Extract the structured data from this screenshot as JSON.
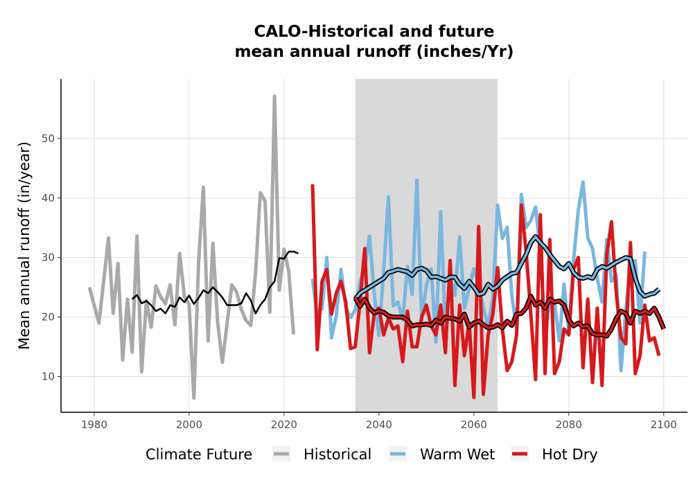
{
  "chart_data": {
    "type": "line",
    "title_lines": [
      "CALO-Historical and future",
      "mean annual runoff (inches/Yr)"
    ],
    "ylabel": "Mean annual runoff (in/year)",
    "xlabel": "",
    "xlim": [
      1973,
      2105
    ],
    "ylim": [
      4,
      60
    ],
    "x_ticks": [
      1980,
      2000,
      2020,
      2040,
      2060,
      2080,
      2100
    ],
    "y_ticks": [
      10,
      20,
      30,
      40,
      50
    ],
    "grid": true,
    "shaded_period": [
      2035,
      2065
    ],
    "legend": {
      "title": "Climate Future",
      "position": "bottom",
      "entries": [
        "Historical",
        "Warm Wet",
        "Hot Dry"
      ]
    },
    "colors": {
      "Historical": "#a9a9a9",
      "Warm Wet": "#79b7e0",
      "Hot Dry": "#d7191c",
      "rolling_mean": "#000000",
      "shade": "#d9d9d9"
    },
    "series": [
      {
        "name": "Historical",
        "x_start": 1979,
        "values": [
          25,
          22,
          19,
          26,
          33.3,
          20.6,
          29,
          12.8,
          23,
          14.1,
          33.6,
          10.8,
          22.8,
          18.3,
          25.2,
          23.4,
          22.2,
          25.4,
          18.7,
          30.7,
          23.5,
          22.1,
          6.4,
          29.3,
          41.8,
          16,
          32.4,
          19.2,
          12.4,
          18.9,
          25.4,
          24.2,
          21.3,
          19.4,
          18.6,
          27.5,
          40.9,
          39.5,
          20.8,
          57.1,
          24.5,
          31.4,
          27.6,
          17.1
        ]
      },
      {
        "name": "Warm Wet",
        "x_start": 2026,
        "values": [
          26.4,
          20.1,
          21.5,
          30,
          16.5,
          20.2,
          28,
          21.6,
          19.9,
          21.2,
          25.9,
          28.2,
          33.6,
          24,
          16.9,
          27.8,
          40.2,
          21.9,
          22.5,
          19.5,
          28.5,
          23.8,
          43,
          19.5,
          25.4,
          28.1,
          15.8,
          37.7,
          17.9,
          26.5,
          23.7,
          33.5,
          21.5,
          24.9,
          28.1,
          25.5,
          21.6,
          18.3,
          23.3,
          38.8,
          33.2,
          35.1,
          23.5,
          18.1,
          40.6,
          35.1,
          36.2,
          38.5,
          31.1,
          17.5,
          22.5,
          22.3,
          16,
          25.5,
          17.5,
          29.5,
          38,
          42.7,
          33.3,
          31.5,
          26.5,
          22.5,
          33,
          26,
          27,
          11,
          21,
          29,
          29.5,
          19,
          31
        ]
      },
      {
        "name": "Hot Dry",
        "x_start": 2026,
        "values": [
          42.3,
          14.5,
          26,
          28,
          20.5,
          24,
          26,
          22.5,
          14.7,
          15,
          22.5,
          31.5,
          14,
          20.6,
          21.5,
          17,
          19.8,
          18,
          18.5,
          12.5,
          21,
          15,
          15,
          20,
          22,
          18.5,
          17,
          22,
          14,
          29.5,
          8.5,
          22,
          13.5,
          19,
          6.5,
          35.2,
          7,
          17,
          20.5,
          28.3,
          18,
          11,
          12.5,
          17,
          38.8,
          31,
          20.5,
          9.5,
          37.2,
          10.5,
          33,
          10.5,
          12.5,
          18,
          17,
          28,
          30,
          11.5,
          23,
          9,
          21.5,
          8.5,
          30.5,
          36,
          24,
          16.5,
          15.5,
          32.5,
          10.5,
          13.5,
          22,
          16,
          16.5,
          13.5
        ]
      },
      {
        "name": "Historical rolling mean",
        "x_start": 1988,
        "values": [
          23,
          23.7,
          22.3,
          22.7,
          22,
          21,
          21.4,
          20.6,
          22,
          21.7,
          23.3,
          22.5,
          23.6,
          22.2,
          23.2,
          24.5,
          24,
          25,
          24.2,
          23.3,
          22,
          22,
          22,
          22.3,
          24,
          22.8,
          20.6,
          22,
          23,
          25,
          26,
          29.9,
          29.8,
          31,
          31,
          30.7
        ]
      },
      {
        "name": "Warm Wet rolling mean",
        "x_start": 2035,
        "values": [
          23,
          24,
          24.5,
          25,
          25.5,
          26,
          26.5,
          27.5,
          27.7,
          28,
          27.8,
          27.6,
          27,
          28,
          28.2,
          27.8,
          26.7,
          26.8,
          26.5,
          26.2,
          26.7,
          26.7,
          25.5,
          24.8,
          26,
          25,
          23.8,
          24,
          25.5,
          24.7,
          25.2,
          26.2,
          26.8,
          27.3,
          27.5,
          29,
          30.5,
          32.5,
          33.5,
          32.5,
          31.7,
          30.5,
          29.5,
          28.5,
          28.1,
          29,
          27.5,
          26.7,
          26.5,
          26.8,
          26.5,
          28,
          28.5,
          28.2,
          28.7,
          29.2,
          29.6,
          30,
          29.8,
          26.5,
          24.3,
          23.5,
          23.8,
          24,
          24.7
        ]
      },
      {
        "name": "Hot Dry rolling mean",
        "x_start": 2035,
        "values": [
          23.2,
          21.8,
          23,
          21.5,
          20.7,
          21,
          20.8,
          20.2,
          20,
          20,
          20,
          19.5,
          18.5,
          18.7,
          18.7,
          18.8,
          18.6,
          19.5,
          19,
          20,
          19.8,
          19.7,
          19.3,
          20.5,
          18.3,
          19,
          19.3,
          18.7,
          18.2,
          18.3,
          18.7,
          18.2,
          19.3,
          18.6,
          20.5,
          20.6,
          21.5,
          23.5,
          22,
          22.5,
          21.5,
          23,
          22.5,
          22.7,
          22,
          19.5,
          18.5,
          19,
          18.4,
          18.5,
          17.2,
          17,
          17,
          16.8,
          18,
          19.8,
          21,
          20.6,
          19,
          21,
          20.6,
          21,
          20.6,
          21.5,
          20,
          18
        ]
      }
    ]
  }
}
